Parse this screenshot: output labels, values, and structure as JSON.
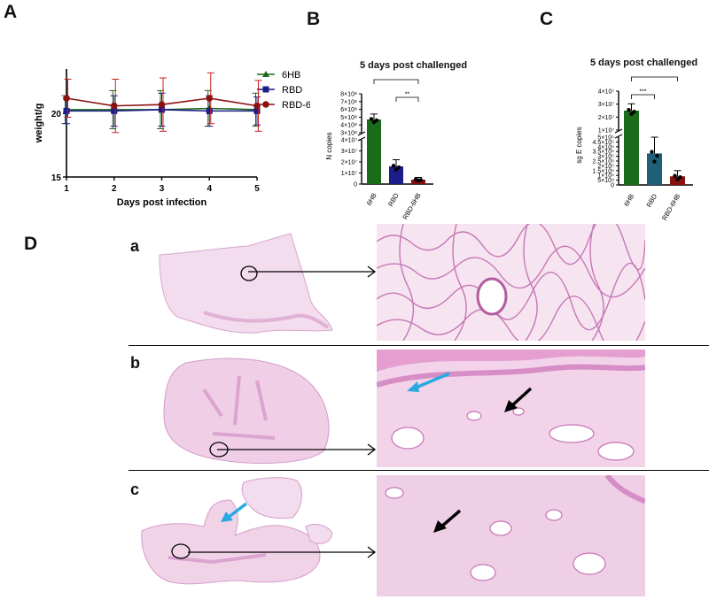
{
  "panels": {
    "a_letter": "A",
    "b_letter": "B",
    "c_letter": "C",
    "d_letter": "D",
    "row_a": "a",
    "row_b": "b",
    "row_c": "c"
  },
  "colors": {
    "green": "#1a6b1a",
    "navy": "#1c1c8a",
    "darkred": "#8b1010",
    "teal": "#1f5f78",
    "marker_blue": "#27a9e1",
    "tissue_pink": "#e6a9d2"
  },
  "chart_data": [
    {
      "type": "line",
      "title": "",
      "xlabel": "Days post infection",
      "ylabel": "weight/g",
      "x": [
        1,
        2,
        3,
        4,
        5
      ],
      "xlim": [
        1,
        5
      ],
      "ylim": [
        15,
        23.5
      ],
      "yticks": [
        15,
        20
      ],
      "legend_position": "top-right",
      "series": [
        {
          "name": "6HB",
          "marker": "triangle",
          "values": [
            20.3,
            20.3,
            20.3,
            20.4,
            20.3
          ],
          "err": [
            1.1,
            1.5,
            1.5,
            1.4,
            1.3
          ]
        },
        {
          "name": "RBD",
          "marker": "square",
          "values": [
            20.2,
            20.2,
            20.3,
            20.2,
            20.2
          ],
          "err": [
            1.0,
            1.2,
            1.3,
            1.2,
            1.1
          ]
        },
        {
          "name": "RBD-6HB",
          "marker": "circle",
          "values": [
            21.2,
            20.6,
            20.7,
            21.2,
            20.6
          ],
          "err": [
            1.5,
            2.1,
            2.1,
            2.0,
            2.0
          ]
        }
      ]
    },
    {
      "type": "bar",
      "title": "5 days post challenged",
      "ylabel": "N copies",
      "categories": [
        "6HB",
        "RBD",
        "RBD-6HB"
      ],
      "values": [
        470000000,
        16000000,
        4000000
      ],
      "err": [
        70000000,
        6000000,
        2000000
      ],
      "broken_axis": {
        "lower": [
          0,
          40000000
        ],
        "upper": [
          300000000,
          800000000
        ]
      },
      "lower_ticks": [
        "0",
        "1×10⁷",
        "2×10⁷",
        "3×10⁷",
        "4×10⁷"
      ],
      "upper_ticks": [
        "3×10⁸",
        "4×10⁸",
        "5×10⁸",
        "6×10⁸",
        "7×10⁸",
        "8×10⁸"
      ],
      "significance": [
        {
          "from": "RBD",
          "to": "RBD-6HB",
          "label": "**"
        },
        {
          "from": "6HB",
          "to": "RBD-6HB",
          "label": "***"
        }
      ]
    },
    {
      "type": "bar",
      "title": "5 days post challenged",
      "ylabel": "sg E copies",
      "categories": [
        "6HB",
        "RBD",
        "RBD-6HB"
      ],
      "values": [
        20000000,
        330000,
        90000
      ],
      "err": [
        7000000,
        170000,
        60000
      ],
      "broken_axis": {
        "lower": [
          0,
          500000
        ],
        "upper": [
          0,
          40000000
        ]
      },
      "lower_ticks": [
        "0",
        "5×10⁴",
        "1×10⁵",
        "1.5×10⁵",
        "2×10⁵",
        "2.5×10⁵",
        "3×10⁵",
        "3.5×10⁵",
        "4×10⁵",
        "4.5×10⁵",
        "5×10⁵"
      ],
      "upper_ticks": [
        "1×10⁷",
        "2×10⁷",
        "3×10⁷",
        "4×10⁷"
      ],
      "significance": [
        {
          "from": "6HB",
          "to": "RBD",
          "label": "***"
        },
        {
          "from": "6HB",
          "to": "RBD-6HB",
          "label": "****"
        }
      ]
    }
  ]
}
